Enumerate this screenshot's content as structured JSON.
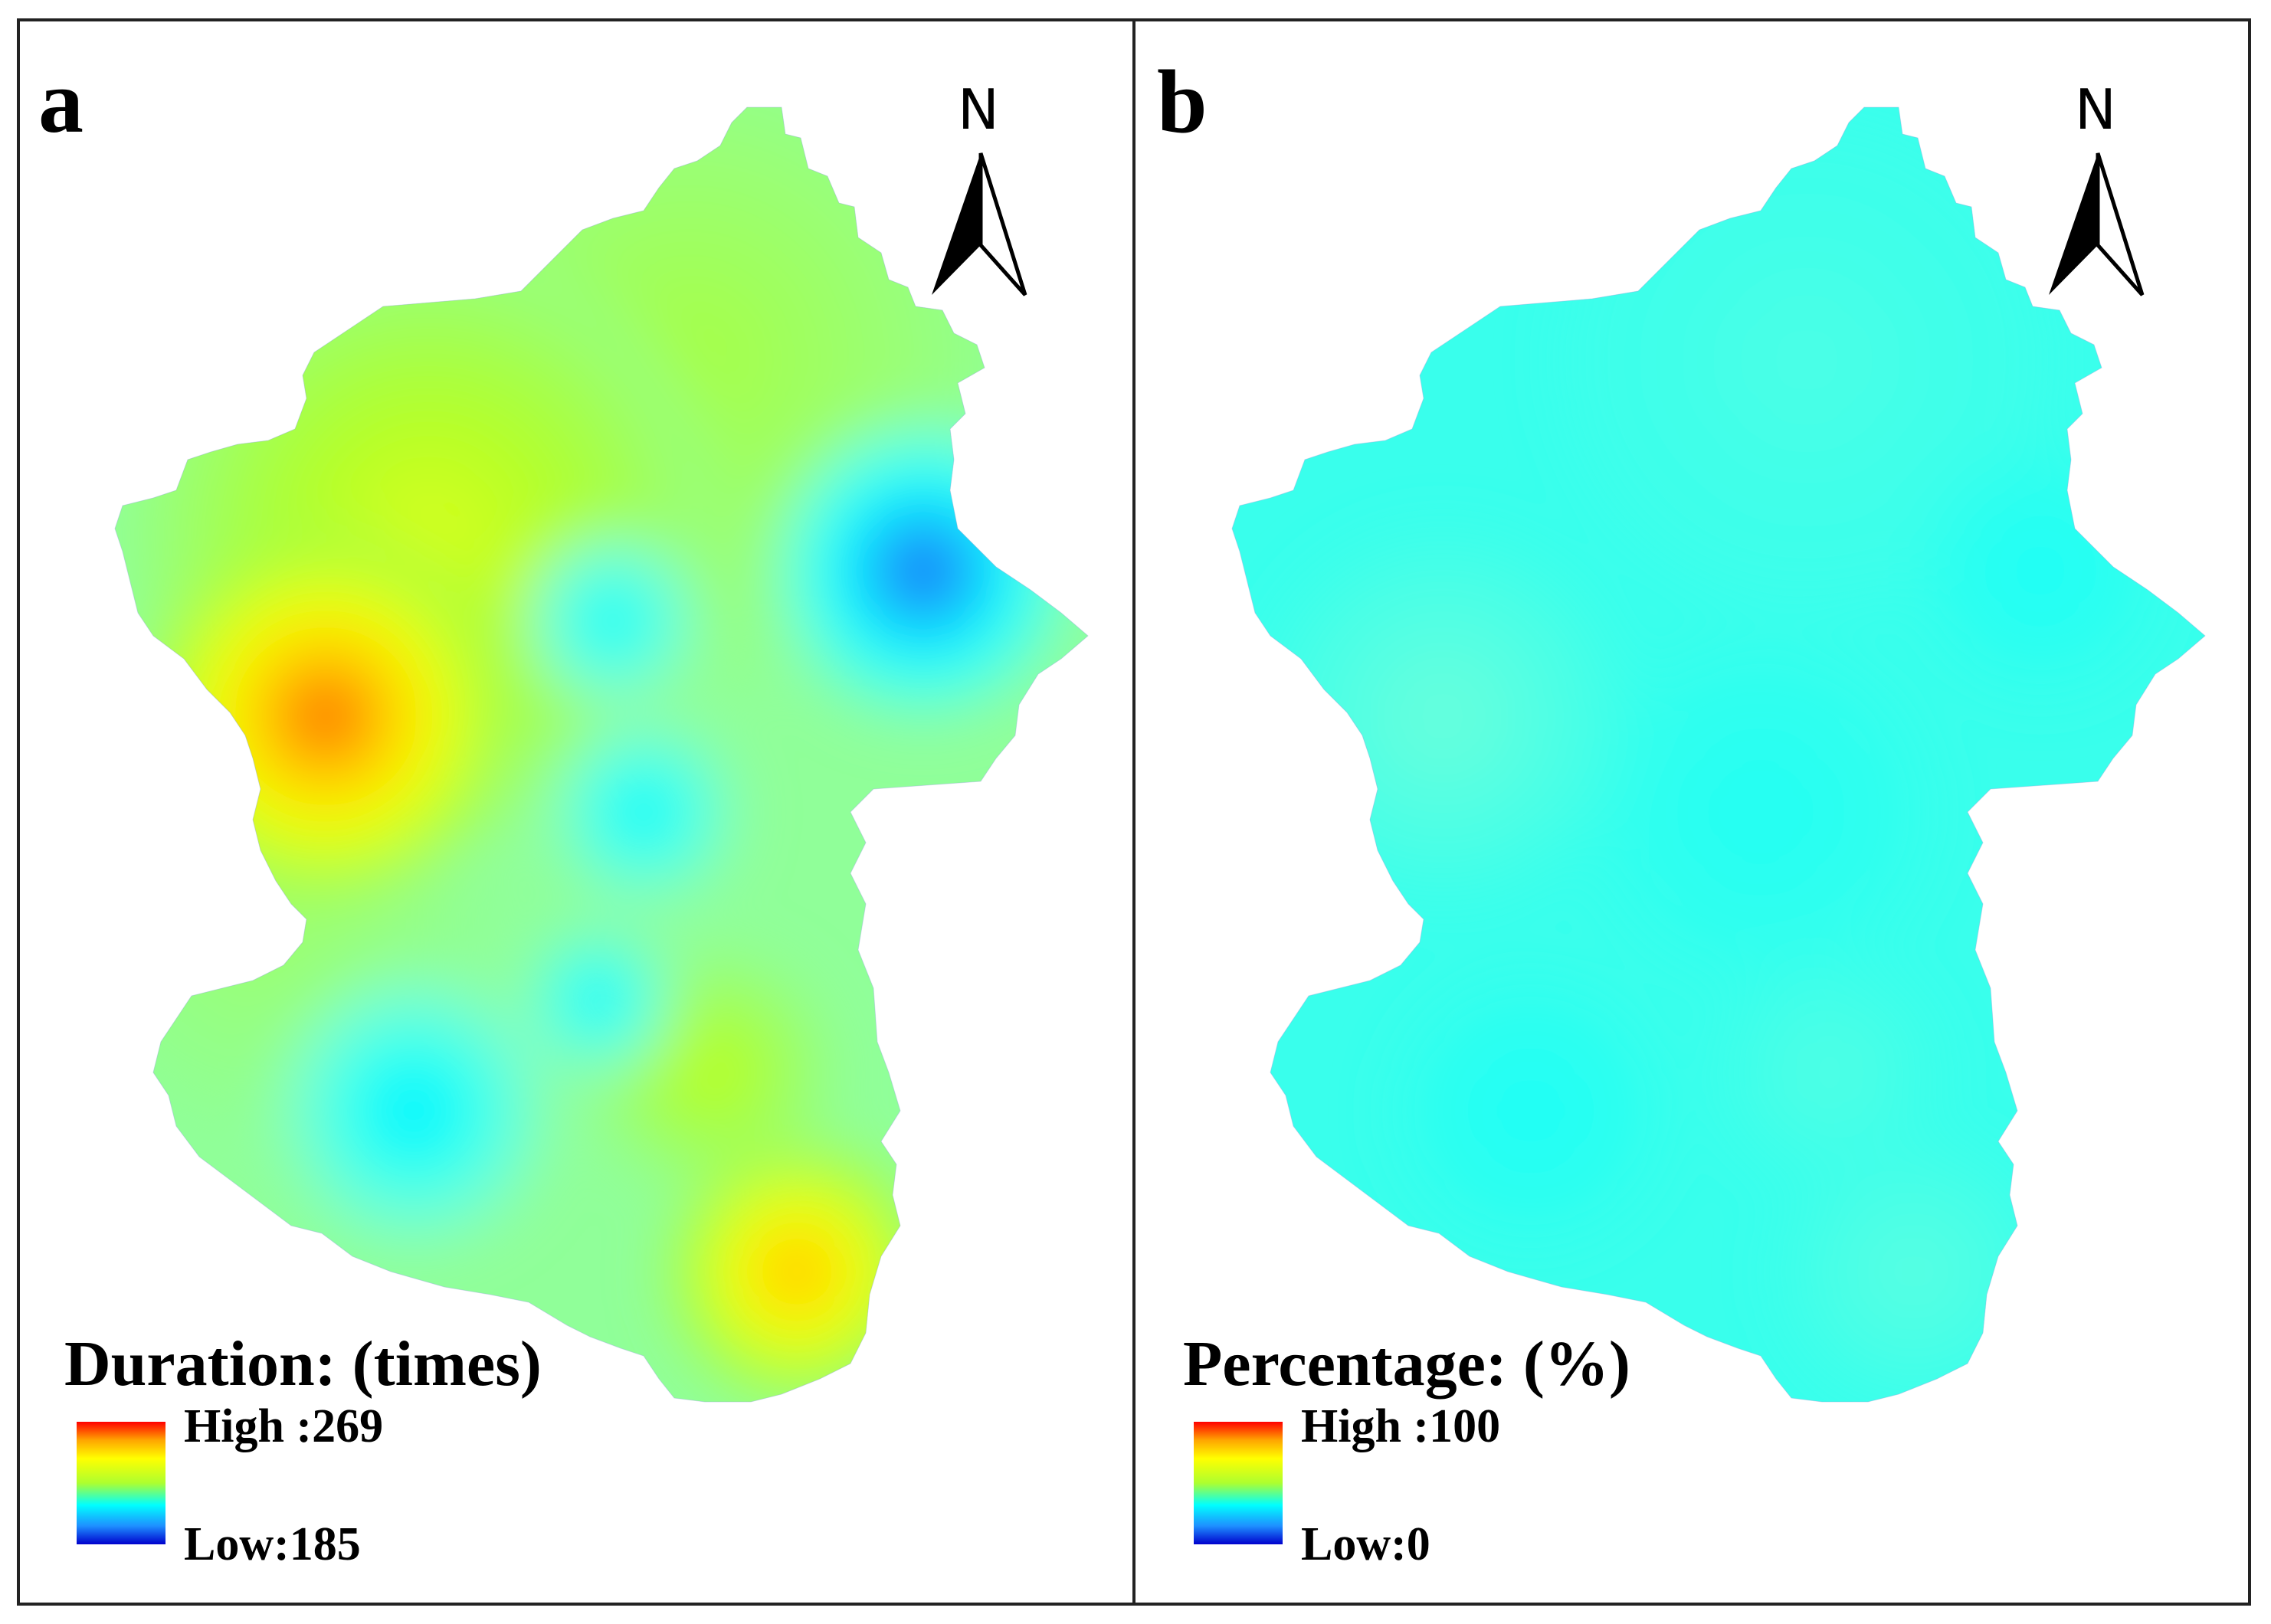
{
  "panels": [
    {
      "id": "a",
      "label": "a",
      "north_label": "N",
      "legend": {
        "title": "Duration: (times)",
        "high": "High :269",
        "low": "Low:185"
      },
      "field": {
        "base_value": 0.48,
        "hotspots": [
          {
            "place": "west-center",
            "value": 0.98,
            "spread": 150
          },
          {
            "place": "west-upper",
            "value": 0.66,
            "spread": 240
          },
          {
            "place": "north-center",
            "value": 0.56,
            "spread": 260
          },
          {
            "place": "east-center",
            "value": 0.04,
            "spread": 120
          },
          {
            "place": "center-upper",
            "value": 0.26,
            "spread": 70
          },
          {
            "place": "center",
            "value": 0.24,
            "spread": 75
          },
          {
            "place": "center-lower",
            "value": 0.24,
            "spread": 60
          },
          {
            "place": "southwest",
            "value": 0.22,
            "spread": 110
          },
          {
            "place": "south-center",
            "value": 0.62,
            "spread": 95
          },
          {
            "place": "southeast",
            "value": 0.88,
            "spread": 105
          },
          {
            "place": "west-lower",
            "value": 0.52,
            "spread": 170
          }
        ]
      }
    },
    {
      "id": "b",
      "label": "b",
      "north_label": "N",
      "legend": {
        "title": "Percentage: (%)",
        "high": "High :100",
        "low": "Low:0"
      },
      "field": {
        "base_value": 0.35,
        "hotspots": [
          {
            "place": "west-center",
            "value": 0.41,
            "spread": 150
          },
          {
            "place": "center",
            "value": 0.32,
            "spread": 140
          },
          {
            "place": "east-center",
            "value": 0.31,
            "spread": 100
          },
          {
            "place": "southwest",
            "value": 0.31,
            "spread": 110
          },
          {
            "place": "south-center",
            "value": 0.38,
            "spread": 90
          },
          {
            "place": "southeast",
            "value": 0.39,
            "spread": 110
          },
          {
            "place": "north-center",
            "value": 0.37,
            "spread": 200
          }
        ]
      }
    }
  ],
  "colormap": [
    "#0000cd",
    "#1e90ff",
    "#00ffff",
    "#7fffd4",
    "#adff2f",
    "#ffff00",
    "#ffa500",
    "#ff0000"
  ]
}
